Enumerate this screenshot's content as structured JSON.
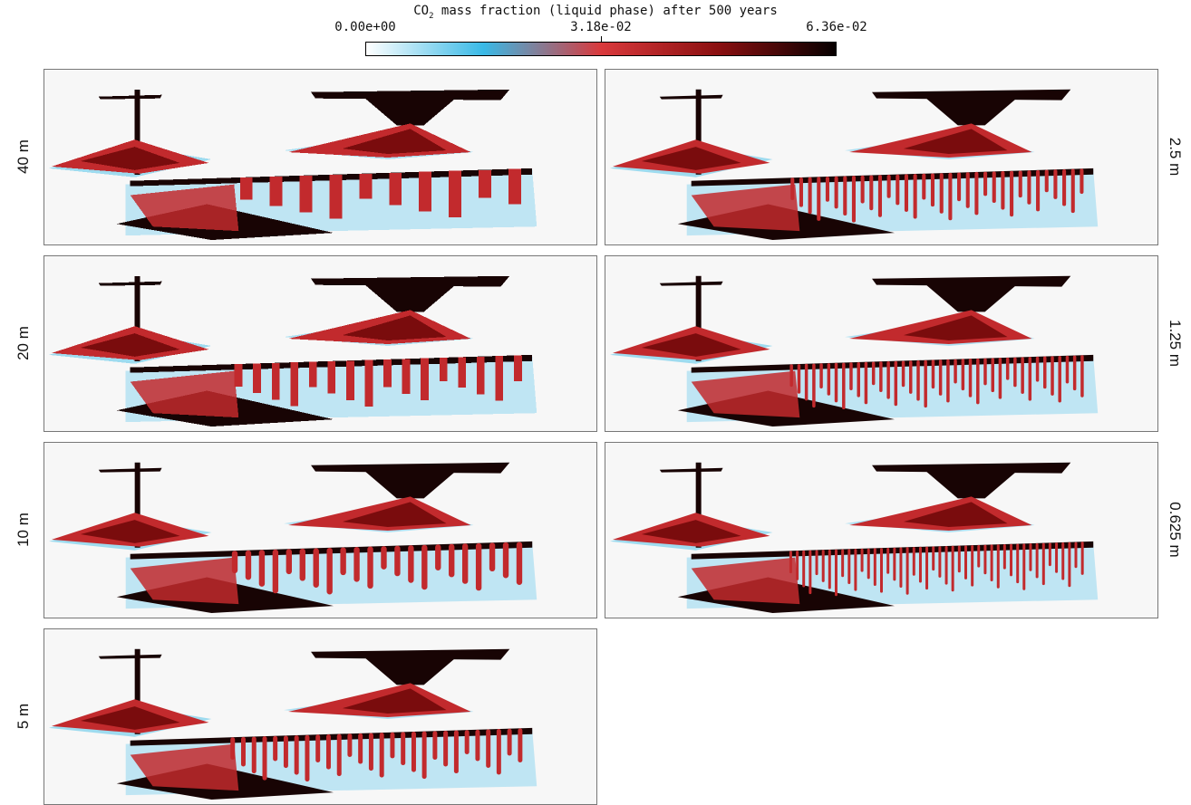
{
  "colorbar": {
    "title_prefix": "CO",
    "title_sub": "2",
    "title_suffix": " mass fraction (liquid phase) after 500 years",
    "ticks": [
      "0.00e+00",
      "3.18e-02",
      "6.36e-02"
    ],
    "range": [
      0.0,
      0.0636
    ],
    "colors": [
      "#ffffff",
      "#39b9e6",
      "#d9393c",
      "#8a0f10",
      "#060000"
    ]
  },
  "panels": [
    {
      "label": "40 m",
      "column": "left",
      "row": 0,
      "fingers": 10,
      "pixelated": true
    },
    {
      "label": "20 m",
      "column": "left",
      "row": 1,
      "fingers": 16,
      "pixelated": true
    },
    {
      "label": "10 m",
      "column": "left",
      "row": 2,
      "fingers": 22,
      "pixelated": false
    },
    {
      "label": "5 m",
      "column": "left",
      "row": 3,
      "fingers": 28,
      "pixelated": false
    },
    {
      "label": "2.5 m",
      "column": "right",
      "row": 0,
      "fingers": 34,
      "pixelated": false
    },
    {
      "label": "1.25 m",
      "column": "right",
      "row": 1,
      "fingers": 40,
      "pixelated": false
    },
    {
      "label": "0.625 m",
      "column": "right",
      "row": 2,
      "fingers": 46,
      "pixelated": false
    }
  ]
}
